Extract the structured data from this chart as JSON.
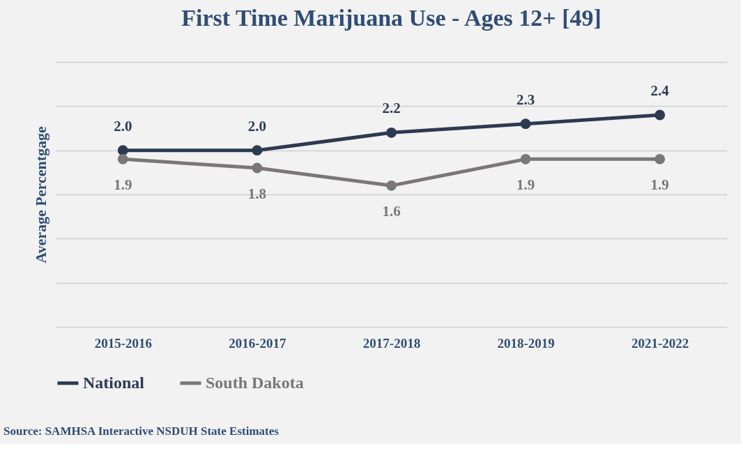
{
  "chart_data": {
    "type": "line",
    "title": "First Time Marijuana Use - Ages 12+ [49]",
    "ylabel": "Average Percentgage",
    "categories": [
      "2015-2016",
      "2016-2017",
      "2017-2018",
      "2018-2019",
      "2021-2022"
    ],
    "series": [
      {
        "name": "National",
        "color": "#2e3a52",
        "values": [
          2.0,
          2.0,
          2.2,
          2.3,
          2.4
        ],
        "value_labels": [
          "2.0",
          "2.0",
          "2.2",
          "2.3",
          "2.4"
        ]
      },
      {
        "name": "South Dakota",
        "color": "#7b7778",
        "values": [
          1.9,
          1.8,
          1.6,
          1.9,
          1.9
        ],
        "value_labels": [
          "1.9",
          "1.8",
          "1.6",
          "1.9",
          "1.9"
        ]
      }
    ],
    "ylim": [
      0,
      3
    ],
    "yticks": [
      {
        "value": 0,
        "label": null
      },
      {
        "value": 0.5,
        "label": null
      },
      {
        "value": 1,
        "label": null
      },
      {
        "value": 1.5,
        "label": null
      },
      {
        "value": 2,
        "label": null
      },
      {
        "value": 2.5,
        "label": null
      },
      {
        "value": 3,
        "label": null
      }
    ],
    "tick_labels": "x",
    "grid": "y",
    "legend": "bottom",
    "marker": "circle",
    "line_style": "solid",
    "annotations": [
      "Source: SAMHSA Interactive NSDUH State Estimates"
    ]
  }
}
